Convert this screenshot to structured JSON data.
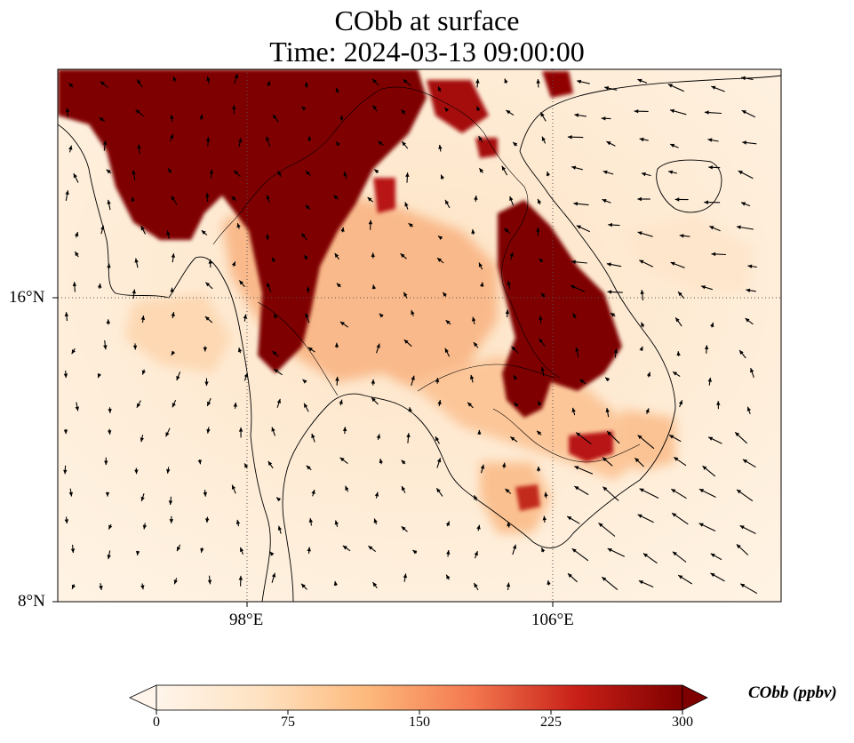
{
  "title_line1": "CObb at surface",
  "title_line2": "Time: 2024-03-13 09:00:00",
  "axes": {
    "lon_ticks": [
      "98°E",
      "106°E"
    ],
    "lat_ticks": [
      "16°N",
      "8°N"
    ]
  },
  "colorbar": {
    "label": "CObb (ppbv)",
    "ticks": [
      "0",
      "75",
      "150",
      "225",
      "300"
    ],
    "min": 0,
    "max": 300,
    "extend": "both",
    "colormap": [
      "#fff5eb",
      "#fdd49e",
      "#fdae6b",
      "#f16913",
      "#d94801",
      "#a30000",
      "#7f0000"
    ]
  },
  "map": {
    "grid": "dotted",
    "background_low": "#fff0de",
    "high_color": "#800000"
  }
}
